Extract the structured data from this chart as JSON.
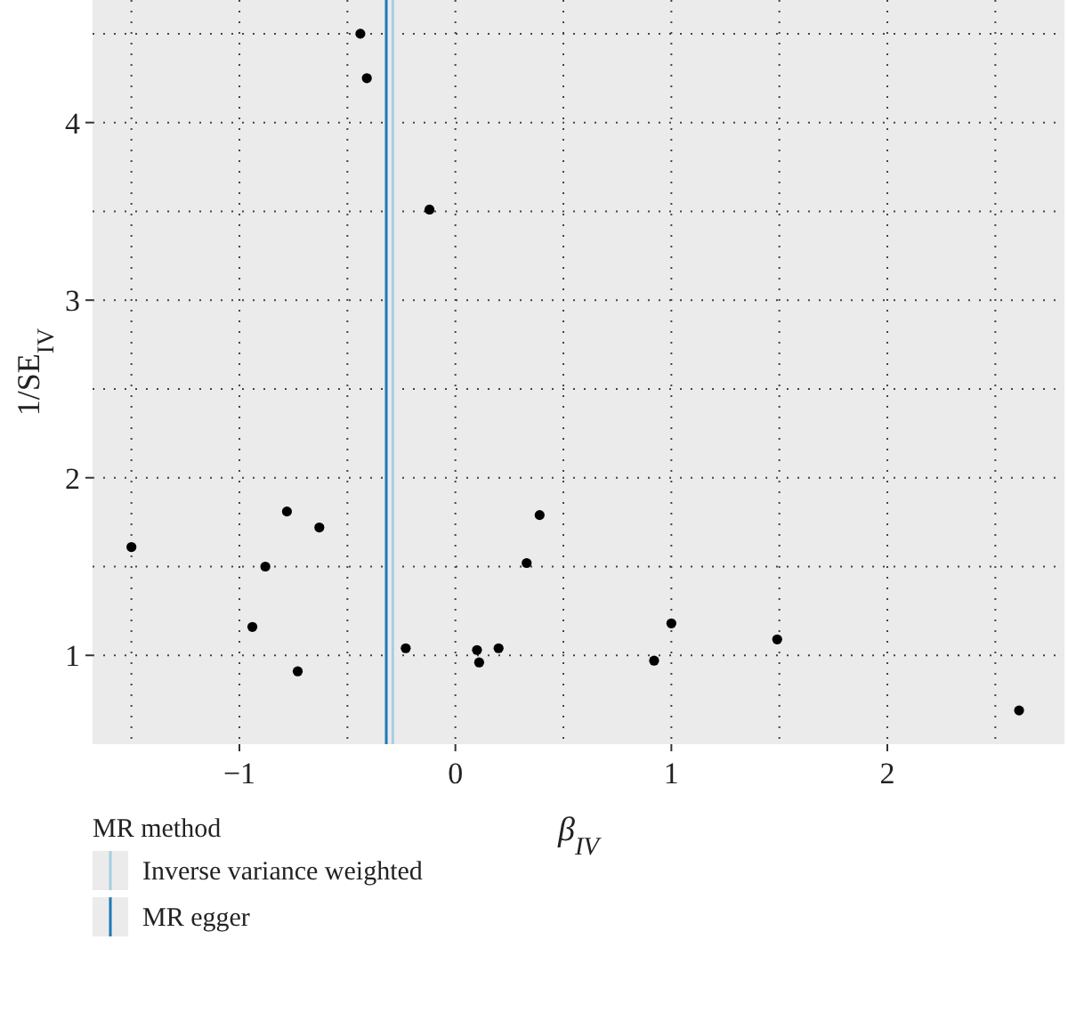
{
  "chart_data": {
    "type": "scatter",
    "xlabel": "β$_{IV}$",
    "ylabel": "1/SE$_{IV}$",
    "legend_title": "MR method",
    "legend": "bottom",
    "grid": true,
    "marker": "circle",
    "xlim": [
      -1.68,
      2.82
    ],
    "ylim": [
      0.5,
      4.69
    ],
    "xticks": [
      {
        "value": -1.5,
        "label": null
      },
      {
        "value": -1,
        "label": "−1"
      },
      {
        "value": -0.5,
        "label": null
      },
      0,
      {
        "value": 0.5,
        "label": null
      },
      1,
      {
        "value": 1.5,
        "label": null
      },
      2,
      {
        "value": 2.5,
        "label": null
      }
    ],
    "yticks": [
      1,
      {
        "value": 1.5,
        "label": null
      },
      2,
      {
        "value": 2.5,
        "label": null
      },
      3,
      {
        "value": 3.5,
        "label": null
      },
      4,
      {
        "value": 4.5,
        "label": null
      }
    ],
    "x": [
      -1.5,
      -0.94,
      -0.88,
      -0.78,
      -0.73,
      -0.63,
      -0.44,
      -0.41,
      -0.23,
      -0.12,
      0.1,
      0.11,
      0.2,
      0.33,
      0.39,
      0.92,
      1.0,
      1.49,
      2.61
    ],
    "series": [
      {
        "color": "#000000",
        "values": [
          1.61,
          1.16,
          1.5,
          1.81,
          0.91,
          1.72,
          4.5,
          4.25,
          1.04,
          3.51,
          1.03,
          0.96,
          1.04,
          1.52,
          1.79,
          0.97,
          1.18,
          1.09,
          0.69
        ]
      }
    ],
    "ref_lines": [
      {
        "axis": "x",
        "value": -0.29,
        "label": "Inverse variance weighted",
        "color": "#a6cee3"
      },
      {
        "axis": "x",
        "value": -0.32,
        "label": "MR egger",
        "color": "#1f78b4"
      }
    ]
  }
}
